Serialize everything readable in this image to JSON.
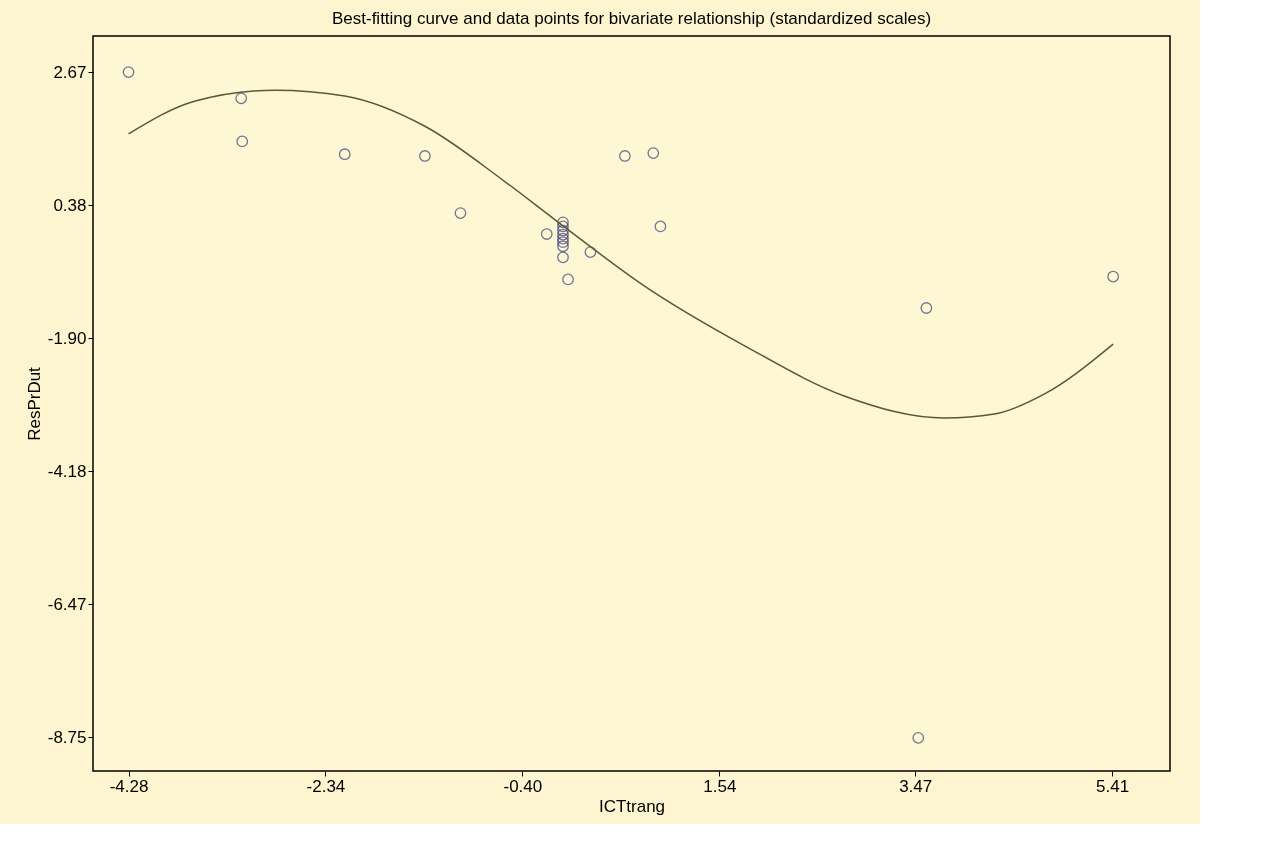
{
  "chart_data": {
    "type": "scatter",
    "title": "Best-fitting curve and data points for bivariate relationship (standardized scales)",
    "xlabel": "ICTtrang",
    "ylabel": "ResPrDut",
    "xlim": [
      -4.63,
      5.98
    ],
    "ylim": [
      -9.33,
      3.29
    ],
    "xticks": [
      {
        "value": -4.28,
        "label": "-4.28"
      },
      {
        "value": -2.34,
        "label": "-2.34"
      },
      {
        "value": -0.4,
        "label": "-0.40"
      },
      {
        "value": 1.54,
        "label": "1.54"
      },
      {
        "value": 3.47,
        "label": "3.47"
      },
      {
        "value": 5.41,
        "label": "5.41"
      }
    ],
    "yticks": [
      {
        "value": 2.67,
        "label": "2.67"
      },
      {
        "value": 0.38,
        "label": "0.38"
      },
      {
        "value": -1.9,
        "label": "-1.90"
      },
      {
        "value": -4.18,
        "label": "-4.18"
      },
      {
        "value": -6.47,
        "label": "-6.47"
      },
      {
        "value": -8.75,
        "label": "-8.75"
      }
    ],
    "grid": false,
    "series": [
      {
        "marker": "circle",
        "color": "#3c3c78",
        "x": [
          -4.28,
          -3.17,
          -3.16,
          -2.15,
          -1.36,
          -1.01,
          -0.16,
          0.0,
          0.0,
          0.0,
          0.0,
          0.0,
          0.0,
          0.0,
          0.0,
          0.05,
          0.27,
          0.61,
          0.89,
          0.96,
          3.58,
          5.42,
          3.5
        ],
        "values": [
          2.67,
          2.22,
          1.48,
          1.26,
          1.23,
          0.25,
          -0.11,
          0.09,
          0.02,
          -0.05,
          -0.12,
          -0.19,
          -0.25,
          -0.32,
          -0.51,
          -0.89,
          -0.42,
          1.23,
          1.28,
          0.02,
          -1.38,
          -0.84,
          -8.76
        ]
      },
      {
        "type": "line",
        "color": "#5a5a30",
        "line_style": "solid",
        "x": [
          -4.28,
          -3.63,
          -2.84,
          -2.15,
          -1.36,
          -0.58,
          0.0,
          0.8,
          1.79,
          2.77,
          3.76,
          4.25,
          4.74,
          5.42
        ],
        "values": [
          1.61,
          2.17,
          2.36,
          2.26,
          1.74,
          0.8,
          0.03,
          -1.0,
          -2.03,
          -2.89,
          -3.27,
          -3.2,
          -2.86,
          -2.0
        ]
      }
    ]
  }
}
